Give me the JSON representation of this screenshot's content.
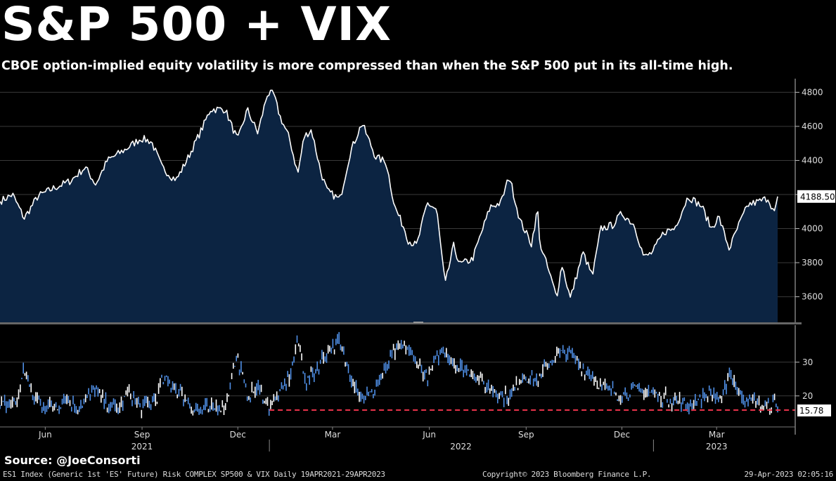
{
  "title": "S&P 500 + VIX",
  "subtitle": "CBOE option-implied equity volatility is more compressed than when the S&P 500 put in its all-time high.",
  "source": "Source: @JoeConsorti",
  "footer": {
    "left": "ES1 Index (Generic 1st 'ES' Future) Risk COMPLEX SP500 & VIX  Daily 19APR2021-29APR2023",
    "middle": "Copyright© 2023 Bloomberg Finance L.P.",
    "right": "29-Apr-2023 02:05:16"
  },
  "colors": {
    "background": "#000000",
    "sp_line": "#ffffff",
    "sp_fill": "#0c2442",
    "vix_bar": "#4f8fe6",
    "vix_highlight": "#ffffff",
    "ref_line": "#e8334a",
    "grid": "#3a3a3a"
  },
  "chart_data": [
    {
      "type": "area",
      "name": "S&P 500",
      "x_start": "2021-04-19",
      "x_end": "2023-04-28",
      "ylim": [
        3450,
        4880
      ],
      "yticks": [
        3600,
        3800,
        4000,
        4200,
        4400,
        4600,
        4800
      ],
      "last_value_label": "4188.50",
      "grid": true,
      "points": [
        [
          "2021-04-19",
          4160
        ],
        [
          "2021-05-01",
          4200
        ],
        [
          "2021-05-12",
          4060
        ],
        [
          "2021-05-25",
          4190
        ],
        [
          "2021-06-10",
          4240
        ],
        [
          "2021-06-25",
          4280
        ],
        [
          "2021-07-09",
          4360
        ],
        [
          "2021-07-19",
          4260
        ],
        [
          "2021-07-30",
          4400
        ],
        [
          "2021-08-15",
          4460
        ],
        [
          "2021-08-31",
          4530
        ],
        [
          "2021-09-10",
          4510
        ],
        [
          "2021-09-20",
          4360
        ],
        [
          "2021-09-30",
          4300
        ],
        [
          "2021-10-04",
          4290
        ],
        [
          "2021-10-15",
          4420
        ],
        [
          "2021-10-29",
          4600
        ],
        [
          "2021-11-05",
          4700
        ],
        [
          "2021-11-19",
          4700
        ],
        [
          "2021-11-26",
          4590
        ],
        [
          "2021-12-01",
          4520
        ],
        [
          "2021-12-10",
          4700
        ],
        [
          "2021-12-20",
          4560
        ],
        [
          "2021-12-29",
          4790
        ],
        [
          "2022-01-04",
          4790
        ],
        [
          "2022-01-10",
          4660
        ],
        [
          "2022-01-19",
          4530
        ],
        [
          "2022-01-27",
          4320
        ],
        [
          "2022-02-02",
          4540
        ],
        [
          "2022-02-09",
          4580
        ],
        [
          "2022-02-18",
          4330
        ],
        [
          "2022-02-24",
          4220
        ],
        [
          "2022-03-08",
          4170
        ],
        [
          "2022-03-18",
          4450
        ],
        [
          "2022-03-29",
          4620
        ],
        [
          "2022-04-11",
          4420
        ],
        [
          "2022-04-21",
          4390
        ],
        [
          "2022-04-29",
          4130
        ],
        [
          "2022-05-09",
          3990
        ],
        [
          "2022-05-12",
          3930
        ],
        [
          "2022-05-20",
          3900
        ],
        [
          "2022-05-30",
          4150
        ],
        [
          "2022-06-08",
          4110
        ],
        [
          "2022-06-16",
          3670
        ],
        [
          "2022-06-24",
          3900
        ],
        [
          "2022-06-30",
          3790
        ],
        [
          "2022-07-12",
          3820
        ],
        [
          "2022-07-29",
          4130
        ],
        [
          "2022-08-08",
          4150
        ],
        [
          "2022-08-16",
          4310
        ],
        [
          "2022-08-26",
          4050
        ],
        [
          "2022-09-06",
          3910
        ],
        [
          "2022-09-12",
          4120
        ],
        [
          "2022-09-13",
          3940
        ],
        [
          "2022-09-30",
          3600
        ],
        [
          "2022-10-05",
          3790
        ],
        [
          "2022-10-13",
          3590
        ],
        [
          "2022-10-25",
          3860
        ],
        [
          "2022-11-03",
          3720
        ],
        [
          "2022-11-11",
          4000
        ],
        [
          "2022-11-22",
          4020
        ],
        [
          "2022-12-01",
          4090
        ],
        [
          "2022-12-13",
          4020
        ],
        [
          "2022-12-22",
          3830
        ],
        [
          "2022-12-30",
          3860
        ],
        [
          "2023-01-10",
          3980
        ],
        [
          "2023-01-20",
          4000
        ],
        [
          "2023-02-02",
          4190
        ],
        [
          "2023-02-15",
          4130
        ],
        [
          "2023-02-24",
          4000
        ],
        [
          "2023-03-03",
          4070
        ],
        [
          "2023-03-13",
          3880
        ],
        [
          "2023-03-22",
          4020
        ],
        [
          "2023-03-31",
          4140
        ],
        [
          "2023-04-11",
          4160
        ],
        [
          "2023-04-19",
          4180
        ],
        [
          "2023-04-25",
          4090
        ],
        [
          "2023-04-28",
          4188.5
        ]
      ]
    },
    {
      "type": "bar",
      "name": "VIX",
      "ylim": [
        11,
        41
      ],
      "yticks": [
        20,
        30
      ],
      "reference_line": 15.78,
      "reference_label": "15.78",
      "reference_start": "2021-12-31",
      "grid": true,
      "points": [
        [
          "2021-04-19",
          17
        ],
        [
          "2021-05-05",
          18
        ],
        [
          "2021-05-12",
          28
        ],
        [
          "2021-05-20",
          20
        ],
        [
          "2021-06-01",
          17
        ],
        [
          "2021-06-15",
          17
        ],
        [
          "2021-06-18",
          20
        ],
        [
          "2021-07-01",
          16
        ],
        [
          "2021-07-19",
          22
        ],
        [
          "2021-07-26",
          18
        ],
        [
          "2021-08-10",
          16
        ],
        [
          "2021-08-19",
          21
        ],
        [
          "2021-08-31",
          16
        ],
        [
          "2021-09-15",
          19
        ],
        [
          "2021-09-20",
          25
        ],
        [
          "2021-09-30",
          23
        ],
        [
          "2021-10-04",
          22
        ],
        [
          "2021-10-20",
          16
        ],
        [
          "2021-11-05",
          16
        ],
        [
          "2021-11-20",
          17
        ],
        [
          "2021-11-26",
          28
        ],
        [
          "2021-12-01",
          31
        ],
        [
          "2021-12-10",
          20
        ],
        [
          "2021-12-20",
          22
        ],
        [
          "2021-12-31",
          17
        ],
        [
          "2022-01-10",
          20
        ],
        [
          "2022-01-20",
          26
        ],
        [
          "2022-01-27",
          37
        ],
        [
          "2022-02-04",
          24
        ],
        [
          "2022-02-14",
          28
        ],
        [
          "2022-02-24",
          33
        ],
        [
          "2022-03-07",
          36
        ],
        [
          "2022-03-18",
          26
        ],
        [
          "2022-03-29",
          19
        ],
        [
          "2022-04-08",
          21
        ],
        [
          "2022-04-22",
          28
        ],
        [
          "2022-04-29",
          33
        ],
        [
          "2022-05-09",
          35
        ],
        [
          "2022-05-20",
          30
        ],
        [
          "2022-05-30",
          25
        ],
        [
          "2022-06-13",
          34
        ],
        [
          "2022-06-30",
          28
        ],
        [
          "2022-07-12",
          27
        ],
        [
          "2022-07-29",
          22
        ],
        [
          "2022-08-16",
          19
        ],
        [
          "2022-08-29",
          26
        ],
        [
          "2022-09-12",
          24
        ],
        [
          "2022-09-23",
          30
        ],
        [
          "2022-09-30",
          32
        ],
        [
          "2022-10-13",
          33
        ],
        [
          "2022-10-25",
          28
        ],
        [
          "2022-11-11",
          23
        ],
        [
          "2022-11-30",
          20
        ],
        [
          "2022-12-13",
          22
        ],
        [
          "2022-12-22",
          21
        ],
        [
          "2022-12-30",
          21
        ],
        [
          "2023-01-12",
          19
        ],
        [
          "2023-01-27",
          18
        ],
        [
          "2023-02-02",
          17
        ],
        [
          "2023-02-24",
          21
        ],
        [
          "2023-03-06",
          18
        ],
        [
          "2023-03-13",
          27
        ],
        [
          "2023-03-16",
          25
        ],
        [
          "2023-03-24",
          20
        ],
        [
          "2023-04-06",
          18
        ],
        [
          "2023-04-18",
          16.5
        ],
        [
          "2023-04-25",
          18.5
        ],
        [
          "2023-04-28",
          15.8
        ]
      ]
    }
  ],
  "x_axis": {
    "month_labels": [
      {
        "label": "Jun",
        "date": "2021-06-01"
      },
      {
        "label": "Sep",
        "date": "2021-09-01"
      },
      {
        "label": "Dec",
        "date": "2021-12-01"
      },
      {
        "label": "Mar",
        "date": "2022-03-01"
      },
      {
        "label": "Jun",
        "date": "2022-06-01"
      },
      {
        "label": "Sep",
        "date": "2022-09-01"
      },
      {
        "label": "Dec",
        "date": "2022-12-01"
      },
      {
        "label": "Mar",
        "date": "2023-03-01"
      }
    ],
    "year_labels": [
      {
        "label": "2021",
        "date": "2021-09-01"
      },
      {
        "label": "2022",
        "date": "2022-07-01"
      },
      {
        "label": "2023",
        "date": "2023-03-01"
      }
    ],
    "year_dividers": [
      "2021-12-31",
      "2022-12-31"
    ]
  }
}
